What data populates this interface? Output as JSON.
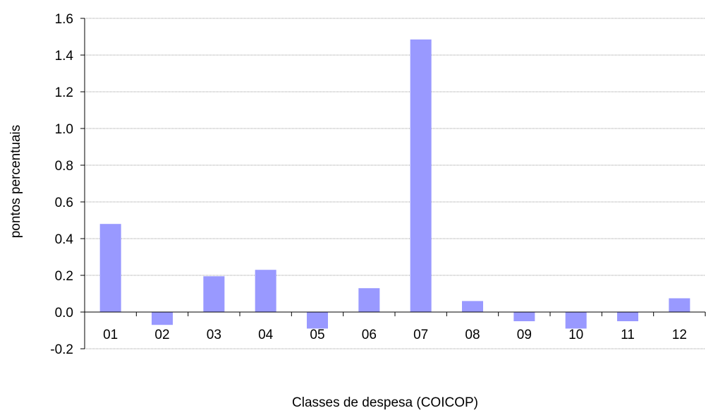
{
  "chart_data": {
    "type": "bar",
    "title": "",
    "xlabel": "Classes de despesa (COICOP)",
    "ylabel": "pontos percentuais",
    "categories": [
      "01",
      "02",
      "03",
      "04",
      "05",
      "06",
      "07",
      "08",
      "09",
      "10",
      "11",
      "12"
    ],
    "values": [
      0.48,
      -0.07,
      0.195,
      0.23,
      -0.09,
      0.13,
      1.485,
      0.06,
      -0.05,
      -0.09,
      -0.05,
      0.075
    ],
    "ylim": [
      -0.2,
      1.6
    ],
    "yticks": [
      "-0.2",
      "0.0",
      "0.2",
      "0.4",
      "0.6",
      "0.8",
      "1.0",
      "1.2",
      "1.4",
      "1.6"
    ],
    "grid": true,
    "legend": "none",
    "colors": {
      "bar": "#9999ff",
      "grid": "#9a9a9a",
      "axis": "#000000"
    }
  }
}
